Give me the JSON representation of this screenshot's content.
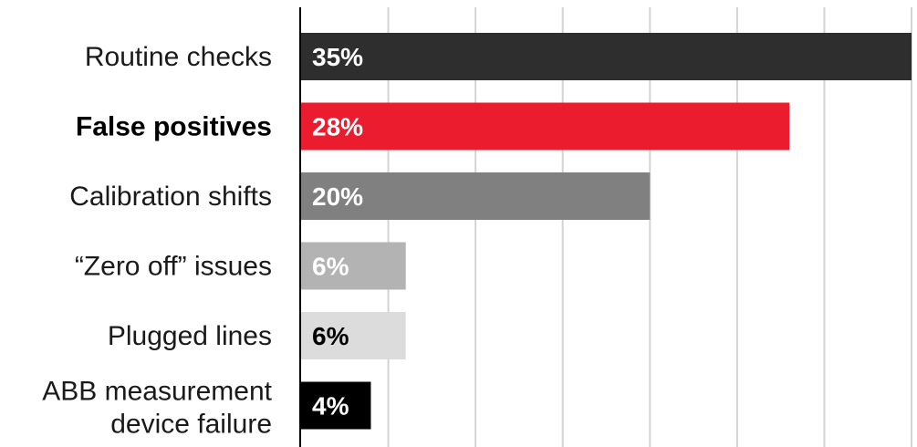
{
  "chart_data": {
    "type": "bar",
    "orientation": "horizontal",
    "title": "",
    "xlabel": "",
    "ylabel": "",
    "xlim": [
      0,
      35
    ],
    "grid": true,
    "legend": "none",
    "categories": [
      "Routine checks",
      "False positives",
      "Calibration shifts",
      "“Zero off” issues",
      "Plugged lines",
      "ABB measurement device failure"
    ],
    "values": [
      35,
      28,
      20,
      6,
      6,
      4
    ],
    "value_labels": [
      "35%",
      "28%",
      "20%",
      "6%",
      "6%",
      "4%"
    ],
    "highlighted_category": "False positives",
    "bar_colors": [
      "#2e2e2e",
      "#eb1c2d",
      "#808080",
      "#b3b3b3",
      "#dcdcdc",
      "#000000"
    ],
    "value_label_colors": [
      "#ffffff",
      "#ffffff",
      "#ffffff",
      "#ffffff",
      "#000000",
      "#ffffff"
    ],
    "gridline_color": "#d4d4d4",
    "axis_color": "#000000"
  }
}
